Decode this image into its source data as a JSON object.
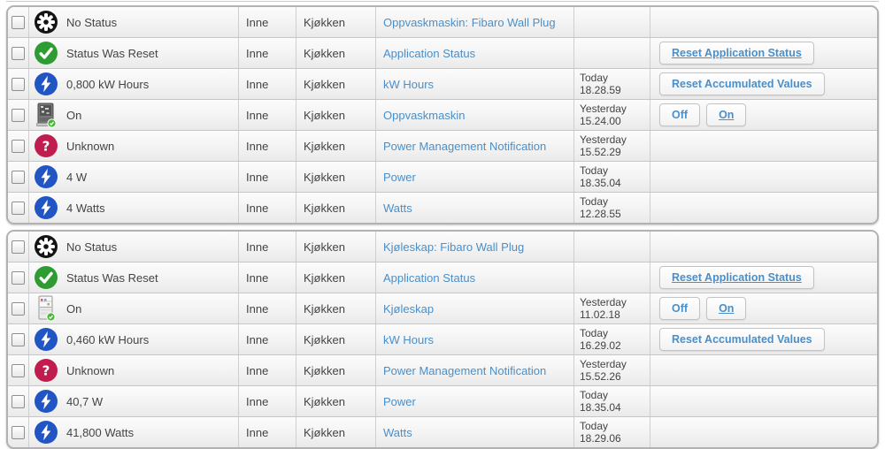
{
  "colors": {
    "link": "#4a8fc9",
    "button_text": "#4a8fc9",
    "status_green": "#2e9b33",
    "status_blue": "#2255c4",
    "status_red": "#c01c4e",
    "status_black": "#141414"
  },
  "tables": [
    {
      "group": "Oppvaskmaskin: Fibaro Wall Plug",
      "rows": [
        {
          "icon": "gear-icon",
          "status": "No Status",
          "floor": "Inne",
          "room": "Kjøkken",
          "device": "Oppvaskmaskin: Fibaro Wall Plug",
          "time_day": "",
          "time_clock": "",
          "buttons": []
        },
        {
          "icon": "check-icon",
          "status": "Status Was Reset",
          "floor": "Inne",
          "room": "Kjøkken",
          "device": "Application Status",
          "time_day": "",
          "time_clock": "",
          "buttons": [
            {
              "label": "Reset Application Status",
              "name": "reset-application-status-button",
              "underline": true
            }
          ]
        },
        {
          "icon": "bolt-icon",
          "status": "0,800 kW Hours",
          "floor": "Inne",
          "room": "Kjøkken",
          "device": "kW Hours",
          "time_day": "Today",
          "time_clock": "18.28.59",
          "buttons": [
            {
              "label": "Reset Accumulated Values",
              "name": "reset-accumulated-values-button",
              "underline": false
            }
          ]
        },
        {
          "icon": "dishwasher-icon",
          "status": "On",
          "floor": "Inne",
          "room": "Kjøkken",
          "device": "Oppvaskmaskin",
          "time_day": "Yesterday",
          "time_clock": "15.24.00",
          "buttons": [
            {
              "label": "Off",
              "name": "off-button",
              "underline": false
            },
            {
              "label": "On",
              "name": "on-button",
              "underline": true
            }
          ]
        },
        {
          "icon": "question-icon",
          "status": "Unknown",
          "floor": "Inne",
          "room": "Kjøkken",
          "device": "Power Management Notification",
          "time_day": "Yesterday",
          "time_clock": "15.52.29",
          "buttons": []
        },
        {
          "icon": "bolt-icon",
          "status": "4 W",
          "floor": "Inne",
          "room": "Kjøkken",
          "device": "Power",
          "time_day": "Today",
          "time_clock": "18.35.04",
          "buttons": []
        },
        {
          "icon": "bolt-icon",
          "status": "4 Watts",
          "floor": "Inne",
          "room": "Kjøkken",
          "device": "Watts",
          "time_day": "Today",
          "time_clock": "12.28.55",
          "buttons": []
        }
      ]
    },
    {
      "group": "Kjøleskap: Fibaro Wall Plug",
      "rows": [
        {
          "icon": "gear-icon",
          "status": "No Status",
          "floor": "Inne",
          "room": "Kjøkken",
          "device": "Kjøleskap: Fibaro Wall Plug",
          "time_day": "",
          "time_clock": "",
          "buttons": []
        },
        {
          "icon": "check-icon",
          "status": "Status Was Reset",
          "floor": "Inne",
          "room": "Kjøkken",
          "device": "Application Status",
          "time_day": "",
          "time_clock": "",
          "buttons": [
            {
              "label": "Reset Application Status",
              "name": "reset-application-status-button",
              "underline": true
            }
          ]
        },
        {
          "icon": "fridge-icon",
          "status": "On",
          "floor": "Inne",
          "room": "Kjøkken",
          "device": "Kjøleskap",
          "time_day": "Yesterday",
          "time_clock": "11.02.18",
          "buttons": [
            {
              "label": "Off",
              "name": "off-button",
              "underline": false
            },
            {
              "label": "On",
              "name": "on-button",
              "underline": true
            }
          ]
        },
        {
          "icon": "bolt-icon",
          "status": "0,460 kW Hours",
          "floor": "Inne",
          "room": "Kjøkken",
          "device": "kW Hours",
          "time_day": "Today",
          "time_clock": "16.29.02",
          "buttons": [
            {
              "label": "Reset Accumulated Values",
              "name": "reset-accumulated-values-button",
              "underline": false
            }
          ]
        },
        {
          "icon": "question-icon",
          "status": "Unknown",
          "floor": "Inne",
          "room": "Kjøkken",
          "device": "Power Management Notification",
          "time_day": "Yesterday",
          "time_clock": "15.52.26",
          "buttons": []
        },
        {
          "icon": "bolt-icon",
          "status": "40,7 W",
          "floor": "Inne",
          "room": "Kjøkken",
          "device": "Power",
          "time_day": "Today",
          "time_clock": "18.35.04",
          "buttons": []
        },
        {
          "icon": "bolt-icon",
          "status": "41,800 Watts",
          "floor": "Inne",
          "room": "Kjøkken",
          "device": "Watts",
          "time_day": "Today",
          "time_clock": "18.29.06",
          "buttons": []
        }
      ]
    }
  ]
}
